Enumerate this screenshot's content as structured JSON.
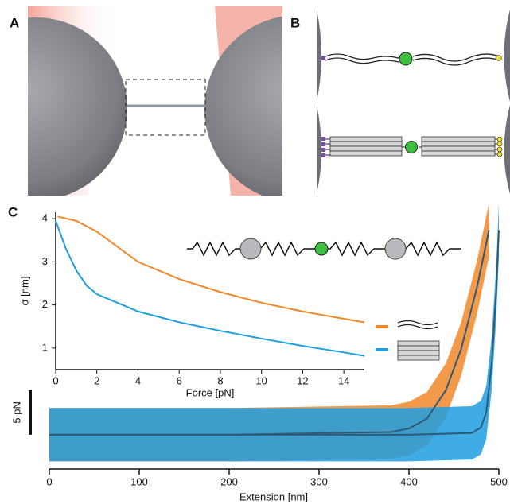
{
  "panels": [
    "A",
    "B",
    "C"
  ],
  "chart_data": [
    {
      "type": "line",
      "xlabel": "Force [pN]",
      "ylabel": "σ [nm]",
      "xlim": [
        0,
        15
      ],
      "ylim": [
        0.5,
        4.15
      ],
      "xticks": [
        0,
        2,
        4,
        6,
        8,
        10,
        12,
        14
      ],
      "yticks": [
        1,
        2,
        3,
        4
      ],
      "series": [
        {
          "color": "#f0882a",
          "x": [
            0.1,
            1,
            2,
            4,
            6,
            8,
            10,
            12,
            14,
            15
          ],
          "values": [
            4.05,
            3.95,
            3.7,
            3.0,
            2.6,
            2.3,
            2.05,
            1.85,
            1.68,
            1.6
          ]
        },
        {
          "color": "#1f9ee0",
          "x": [
            0,
            0.5,
            1,
            1.5,
            2,
            3,
            4,
            6,
            8,
            10,
            12,
            14,
            15
          ],
          "values": [
            3.95,
            3.3,
            2.8,
            2.45,
            2.25,
            2.05,
            1.85,
            1.6,
            1.4,
            1.22,
            1.05,
            0.9,
            0.82
          ]
        }
      ]
    },
    {
      "type": "line",
      "xlabel": "Extension [nm]",
      "xlim": [
        0,
        500
      ],
      "ylim": [
        -3.5,
        25
      ],
      "xticks": [
        0,
        100,
        200,
        300,
        400,
        500
      ],
      "scalebar": {
        "value": 5,
        "label": "5 pN"
      },
      "fit_color": "#2f5a77",
      "series": [
        {
          "color": "#f0882a",
          "noise": 3,
          "x": [
            0,
            200,
            380,
            400,
            420,
            441,
            458,
            476,
            489
          ],
          "values": [
            0,
            0,
            0.3,
            0.7,
            1.8,
            5,
            9.6,
            16.7,
            23
          ]
        },
        {
          "color": "#1f9ee0",
          "noise": 3,
          "x": [
            0,
            200,
            400,
            470,
            480,
            486,
            492,
            497,
            500
          ],
          "values": [
            0,
            0,
            0,
            0.2,
            0.8,
            2.5,
            8,
            16,
            23
          ]
        }
      ]
    }
  ]
}
